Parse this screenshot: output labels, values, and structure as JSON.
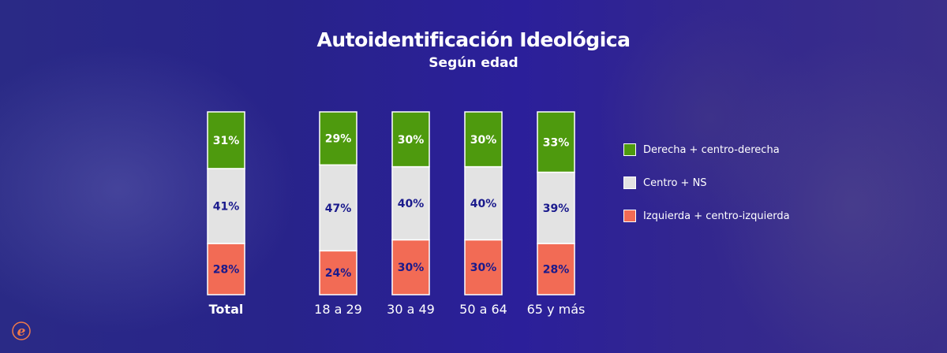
{
  "chart_data": {
    "type": "bar",
    "stacked": true,
    "title": "Autoidentificación Ideológica",
    "subtitle": "Según edad",
    "categories": [
      "Total",
      "18 a 29",
      "30 a 49",
      "50 a 64",
      "65 y más"
    ],
    "series": [
      {
        "name": "Izquierda + centro-izquierda",
        "color": "#f26b55",
        "label_color": "#1a1a8c",
        "values": [
          28,
          24,
          30,
          30,
          28
        ]
      },
      {
        "name": "Centro + NS",
        "color": "#e3e3e3",
        "label_color": "#1a1a8c",
        "values": [
          41,
          47,
          40,
          40,
          39
        ]
      },
      {
        "name": "Derecha + centro-derecha",
        "color": "#4e9a0e",
        "label_color": "#ffffff",
        "values": [
          31,
          29,
          30,
          30,
          33
        ]
      }
    ],
    "legend_order": [
      "Derecha + centro-derecha",
      "Centro + NS",
      "Izquierda + centro-izquierda"
    ],
    "legend_position": "right",
    "value_suffix": "%",
    "grid": false,
    "ylim": [
      0,
      100
    ]
  },
  "logo": "elpais-e-logo",
  "background": "blue-tinted photo of legislative palace and street"
}
